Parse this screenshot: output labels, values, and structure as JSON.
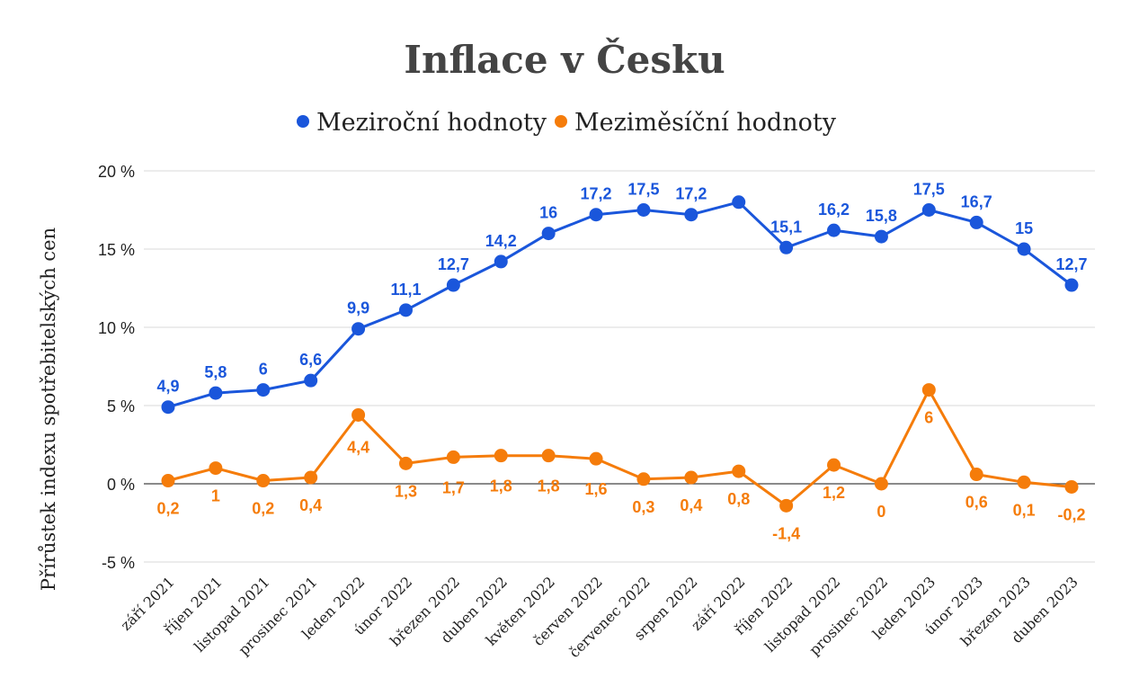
{
  "chart_data": {
    "type": "line",
    "title": "Inflace v Česku",
    "xlabel": "",
    "ylabel": "Přírůstek indexu spotřebitelských cen",
    "ylim": [
      -5,
      20
    ],
    "yticks": [
      "20 %",
      "15 %",
      "10 %",
      "5 %",
      "0 %",
      "-5 %"
    ],
    "ytick_values": [
      20,
      15,
      10,
      5,
      0,
      -5
    ],
    "grid": true,
    "legend": "top",
    "categories": [
      "září 2021",
      "říjen 2021",
      "listopad 2021",
      "prosinec 2021",
      "leden 2022",
      "únor 2022",
      "březen 2022",
      "duben 2022",
      "květen 2022",
      "červen 2022",
      "červenec 2022",
      "srpen 2022",
      "září 2022",
      "říjen 2022",
      "listopad 2022",
      "prosinec 2022",
      "leden 2023",
      "únor 2023",
      "březen 2023",
      "duben 2023"
    ],
    "series": [
      {
        "name": "Meziroční hodnoty",
        "color": "#1a56db",
        "values": [
          4.9,
          5.8,
          6,
          6.6,
          9.9,
          11.1,
          12.7,
          14.2,
          16,
          17.2,
          17.5,
          17.2,
          18,
          15.1,
          16.2,
          15.8,
          17.5,
          16.7,
          15,
          12.7
        ],
        "labels": [
          "4,9",
          "5,8",
          "6",
          "6,6",
          "9,9",
          "11,1",
          "12,7",
          "14,2",
          "16",
          "17,2",
          "17,5",
          "17,2",
          "",
          "15,1",
          "16,2",
          "15,8",
          "17,5",
          "16,7",
          "15",
          "12,7"
        ]
      },
      {
        "name": "Meziměsíční hodnoty",
        "color": "#f57c0a",
        "values": [
          0.2,
          1,
          0.2,
          0.4,
          4.4,
          1.3,
          1.7,
          1.8,
          1.8,
          1.6,
          0.3,
          0.4,
          0.8,
          -1.4,
          1.2,
          0,
          6,
          0.6,
          0.1,
          -0.2
        ],
        "labels": [
          "0,2",
          "1",
          "0,2",
          "0,4",
          "4,4",
          "1,3",
          "1,7",
          "1,8",
          "1,8",
          "1,6",
          "0,3",
          "0,4",
          "0,8",
          "-1,4",
          "1,2",
          "0",
          "6",
          "0,6",
          "0,1",
          "-0,2"
        ]
      }
    ]
  }
}
